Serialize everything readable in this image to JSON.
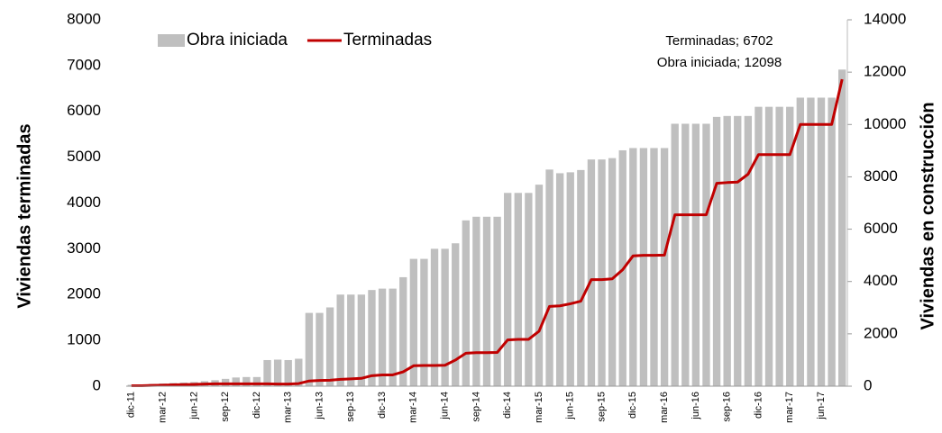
{
  "chart_data": {
    "type": "bar-line",
    "y_label": "Viviendas terminadas",
    "y2_label": "Viviendas en construcción",
    "annotations": [
      "Terminadas; 6702",
      "Obra iniciada; 12098"
    ],
    "categories": [
      "dic-11",
      null,
      null,
      "mar-12",
      null,
      null,
      "jun-12",
      null,
      null,
      "sep-12",
      null,
      null,
      "dic-12",
      null,
      null,
      "mar-13",
      null,
      null,
      "jun-13",
      null,
      null,
      "sep-13",
      null,
      null,
      "dic-13",
      null,
      null,
      "mar-14",
      null,
      null,
      "jun-14",
      null,
      null,
      "sep-14",
      null,
      null,
      "dic-14",
      null,
      null,
      "mar-15",
      null,
      null,
      "jun-15",
      null,
      null,
      "sep-15",
      null,
      null,
      "dic-15",
      null,
      null,
      "mar-16",
      null,
      null,
      "jun-16",
      null,
      null,
      "sep-16",
      null,
      null,
      "dic-16",
      null,
      null,
      "mar-17",
      null,
      null,
      "jun-17",
      null,
      null
    ],
    "series": [
      {
        "name": "Obra iniciada",
        "type": "bar",
        "axis": "y2",
        "color": "#bfbfbf",
        "values": [
          53,
          70,
          88,
          105,
          123,
          140,
          158,
          193,
          228,
          280,
          333,
          350,
          350,
          998,
          1015,
          998,
          1050,
          2800,
          2800,
          3010,
          3500,
          3500,
          3500,
          3675,
          3728,
          3728,
          4165,
          4865,
          4865,
          5250,
          5250,
          5460,
          6335,
          6475,
          6475,
          6475,
          7385,
          7385,
          7385,
          7700,
          8278,
          8138,
          8173,
          8260,
          8663,
          8663,
          8715,
          9013,
          9100,
          9100,
          9100,
          9100,
          10028,
          10028,
          10028,
          10028,
          10290,
          10325,
          10325,
          10325,
          10675,
          10675,
          10675,
          10675,
          11025,
          11025,
          11025,
          11025,
          12098
        ]
      },
      {
        "name": "Terminadas",
        "type": "line",
        "axis": "y",
        "color": "#c00000",
        "values": [
          11,
          11,
          17,
          23,
          29,
          34,
          40,
          46,
          51,
          51,
          51,
          51,
          51,
          51,
          46,
          46,
          57,
          114,
          126,
          131,
          149,
          160,
          171,
          229,
          246,
          246,
          314,
          446,
          451,
          451,
          457,
          571,
          720,
          731,
          731,
          737,
          1011,
          1023,
          1023,
          1200,
          1743,
          1754,
          1800,
          1857,
          2326,
          2326,
          2343,
          2543,
          2846,
          2857,
          2857,
          2863,
          3743,
          3743,
          3743,
          3743,
          4429,
          4446,
          4457,
          4629,
          5057,
          5057,
          5057,
          5057,
          5714,
          5714,
          5714,
          5714,
          6702
        ]
      }
    ],
    "ylim": [
      0,
      8000
    ],
    "yticks": [
      0,
      1000,
      2000,
      3000,
      4000,
      5000,
      6000,
      7000,
      8000
    ],
    "y2lim": [
      0,
      14000
    ],
    "y2ticks": [
      0,
      2000,
      4000,
      6000,
      8000,
      10000,
      12000,
      14000
    ],
    "grid": false,
    "legend": "top-left"
  }
}
